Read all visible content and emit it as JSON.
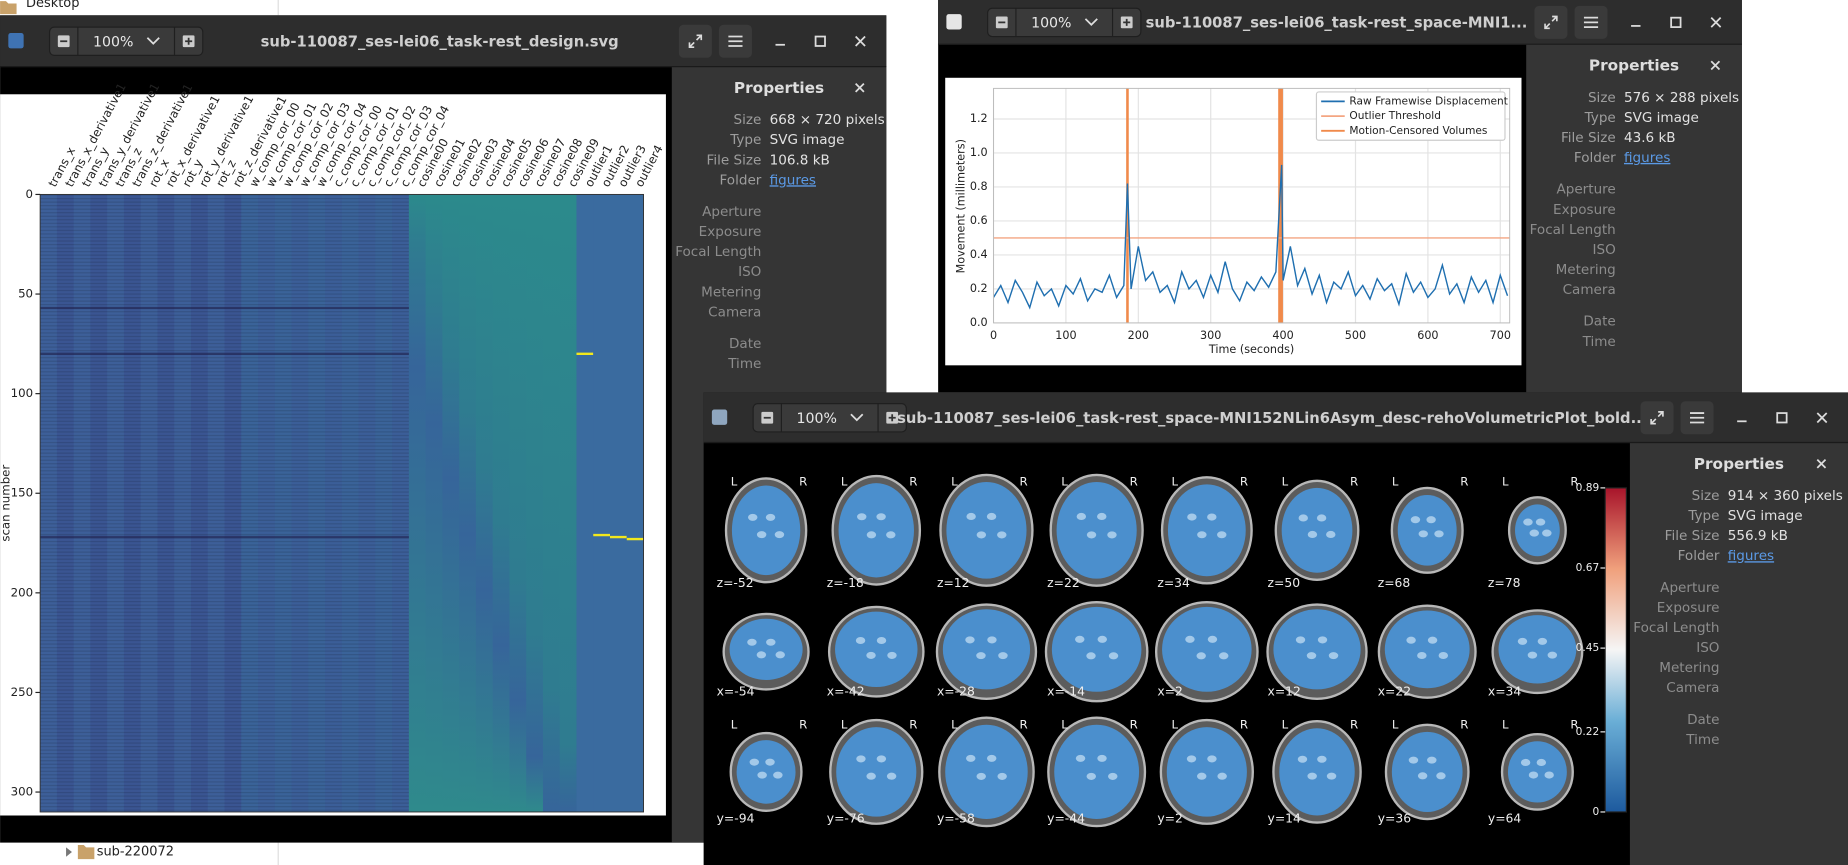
{
  "file_manager": {
    "top_item": "Desktop",
    "bottom_item": "sub-220072"
  },
  "windows": [
    {
      "title": "sub-110087_ses-lei06_task-rest_design.svg",
      "zoom": "100%",
      "properties": {
        "heading": "Properties",
        "fields": [
          {
            "label": "Size",
            "value": "668 × 720 pixels"
          },
          {
            "label": "Type",
            "value": "SVG image"
          },
          {
            "label": "File Size",
            "value": "106.8 kB"
          },
          {
            "label": "Folder",
            "value": "figures"
          }
        ],
        "image_fields": [
          "Aperture",
          "Exposure",
          "Focal Length",
          "ISO",
          "Metering",
          "Camera"
        ],
        "time_fields": [
          "Date",
          "Time"
        ]
      },
      "figure": {
        "type": "design_matrix",
        "ylabel": "scan number",
        "ylim": [
          0,
          310
        ],
        "yticks": [
          0,
          50,
          100,
          150,
          200,
          250,
          300
        ],
        "columns": [
          "trans_x",
          "trans_x_derivative1",
          "trans_y",
          "trans_y_derivative1",
          "trans_z",
          "trans_z_derivative1",
          "rot_x",
          "rot_x_derivative1",
          "rot_y",
          "rot_y_derivative1",
          "rot_z",
          "rot_z_derivative1",
          "w_comp_cor_00",
          "w_comp_cor_01",
          "w_comp_cor_02",
          "w_comp_cor_03",
          "w_comp_cor_04",
          "c_comp_cor_00",
          "c_comp_cor_01",
          "c_comp_cor_02",
          "c_comp_cor_03",
          "c_comp_cor_04",
          "cosine00",
          "cosine01",
          "cosine02",
          "cosine03",
          "cosine04",
          "cosine05",
          "cosine06",
          "cosine07",
          "cosine08",
          "cosine09",
          "outlier1",
          "outlier2",
          "outlier3",
          "outlier4"
        ],
        "outlier_scans": [
          80,
          171,
          172,
          173
        ],
        "motion_spike_scans": [
          57,
          80,
          172
        ]
      }
    },
    {
      "title": "sub-110087_ses-lei06_task-rest_space-MNI1...",
      "zoom": "100%",
      "properties": {
        "heading": "Properties",
        "fields": [
          {
            "label": "Size",
            "value": "576 × 288 pixels"
          },
          {
            "label": "Type",
            "value": "SVG image"
          },
          {
            "label": "File Size",
            "value": "43.6 kB"
          },
          {
            "label": "Folder",
            "value": "figures"
          }
        ],
        "image_fields": [
          "Aperture",
          "Exposure",
          "Focal Length",
          "ISO",
          "Metering",
          "Camera"
        ],
        "time_fields": [
          "Date",
          "Time"
        ]
      },
      "figure": {
        "type": "line",
        "xlabel": "Time (seconds)",
        "ylabel": "Movement (millimeters)",
        "grid": true,
        "legend": "upper right",
        "xlim": [
          0,
          713
        ],
        "ylim": [
          0,
          1.38
        ],
        "xticks": [
          0,
          100,
          200,
          300,
          400,
          500,
          600,
          700
        ],
        "yticks": [
          {
            "value": 0,
            "label": "0.0"
          },
          0.2,
          0.4,
          0.6,
          0.8,
          {
            "value": 1,
            "label": "1.0"
          },
          1.2
        ],
        "x": [
          0,
          10,
          20,
          30,
          40,
          50,
          60,
          70,
          80,
          90,
          100,
          110,
          120,
          130,
          140,
          150,
          160,
          170,
          180,
          185,
          190,
          200,
          210,
          220,
          230,
          240,
          250,
          260,
          270,
          280,
          290,
          300,
          310,
          320,
          330,
          340,
          350,
          360,
          370,
          380,
          390,
          398,
          400,
          410,
          420,
          430,
          440,
          450,
          460,
          470,
          480,
          490,
          500,
          510,
          520,
          530,
          540,
          550,
          560,
          570,
          580,
          590,
          600,
          610,
          620,
          630,
          640,
          650,
          660,
          670,
          680,
          690,
          700,
          710
        ],
        "series": [
          {
            "name": "Raw Framewise Displacement",
            "color": "#1f6fb0",
            "values": [
              0.15,
              0.22,
              0.12,
              0.25,
              0.18,
              0.09,
              0.24,
              0.16,
              0.2,
              0.1,
              0.22,
              0.17,
              0.26,
              0.13,
              0.2,
              0.18,
              0.28,
              0.15,
              0.22,
              0.82,
              0.2,
              0.45,
              0.25,
              0.3,
              0.18,
              0.22,
              0.12,
              0.3,
              0.2,
              0.25,
              0.15,
              0.28,
              0.18,
              0.36,
              0.2,
              0.13,
              0.24,
              0.19,
              0.27,
              0.21,
              0.3,
              0.93,
              0.25,
              0.45,
              0.22,
              0.32,
              0.17,
              0.28,
              0.12,
              0.24,
              0.2,
              0.3,
              0.16,
              0.22,
              0.14,
              0.26,
              0.19,
              0.23,
              0.11,
              0.29,
              0.18,
              0.24,
              0.15,
              0.2,
              0.34,
              0.17,
              0.23,
              0.12,
              0.27,
              0.18,
              0.25,
              0.12,
              0.28,
              0.16
            ]
          }
        ],
        "threshold": {
          "name": "Outlier Threshold",
          "color": "#f4a582",
          "value": 0.5
        },
        "censored": {
          "name": "Motion-Censored Volumes",
          "color": "#f08a4b",
          "x": [
            185,
            395,
            398
          ]
        }
      }
    },
    {
      "title": "sub-110087_ses-lei06_task-rest_space-MNI152NLin6Asym_desc-rehoVolumetricPlot_bold...",
      "zoom": "100%",
      "properties": {
        "heading": "Properties",
        "fields": [
          {
            "label": "Size",
            "value": "914 × 360 pixels"
          },
          {
            "label": "Type",
            "value": "SVG image"
          },
          {
            "label": "File Size",
            "value": "556.9 kB"
          },
          {
            "label": "Folder",
            "value": "figures"
          }
        ],
        "image_fields": [
          "Aperture",
          "Exposure",
          "Focal Length",
          "ISO",
          "Metering",
          "Camera"
        ],
        "time_fields": [
          "Date",
          "Time"
        ]
      },
      "figure": {
        "type": "mosaic",
        "left_label": "L",
        "right_label": "R",
        "rows": [
          [
            "z=-52",
            "z=-18",
            "z=12",
            "z=22",
            "z=34",
            "z=50",
            "z=68",
            "z=78"
          ],
          [
            "x=-54",
            "x=-42",
            "x=-28",
            "x=-14",
            "x=2",
            "x=12",
            "x=22",
            "x=34"
          ],
          [
            "y=-94",
            "y=-76",
            "y=-58",
            "y=-44",
            "y=2",
            "y=14",
            "y=36",
            "y=64"
          ]
        ],
        "colorbar": {
          "ylim": [
            0,
            0.89
          ],
          "yticks": [
            0,
            0.22,
            0.45,
            0.67,
            0.89
          ]
        }
      }
    }
  ]
}
